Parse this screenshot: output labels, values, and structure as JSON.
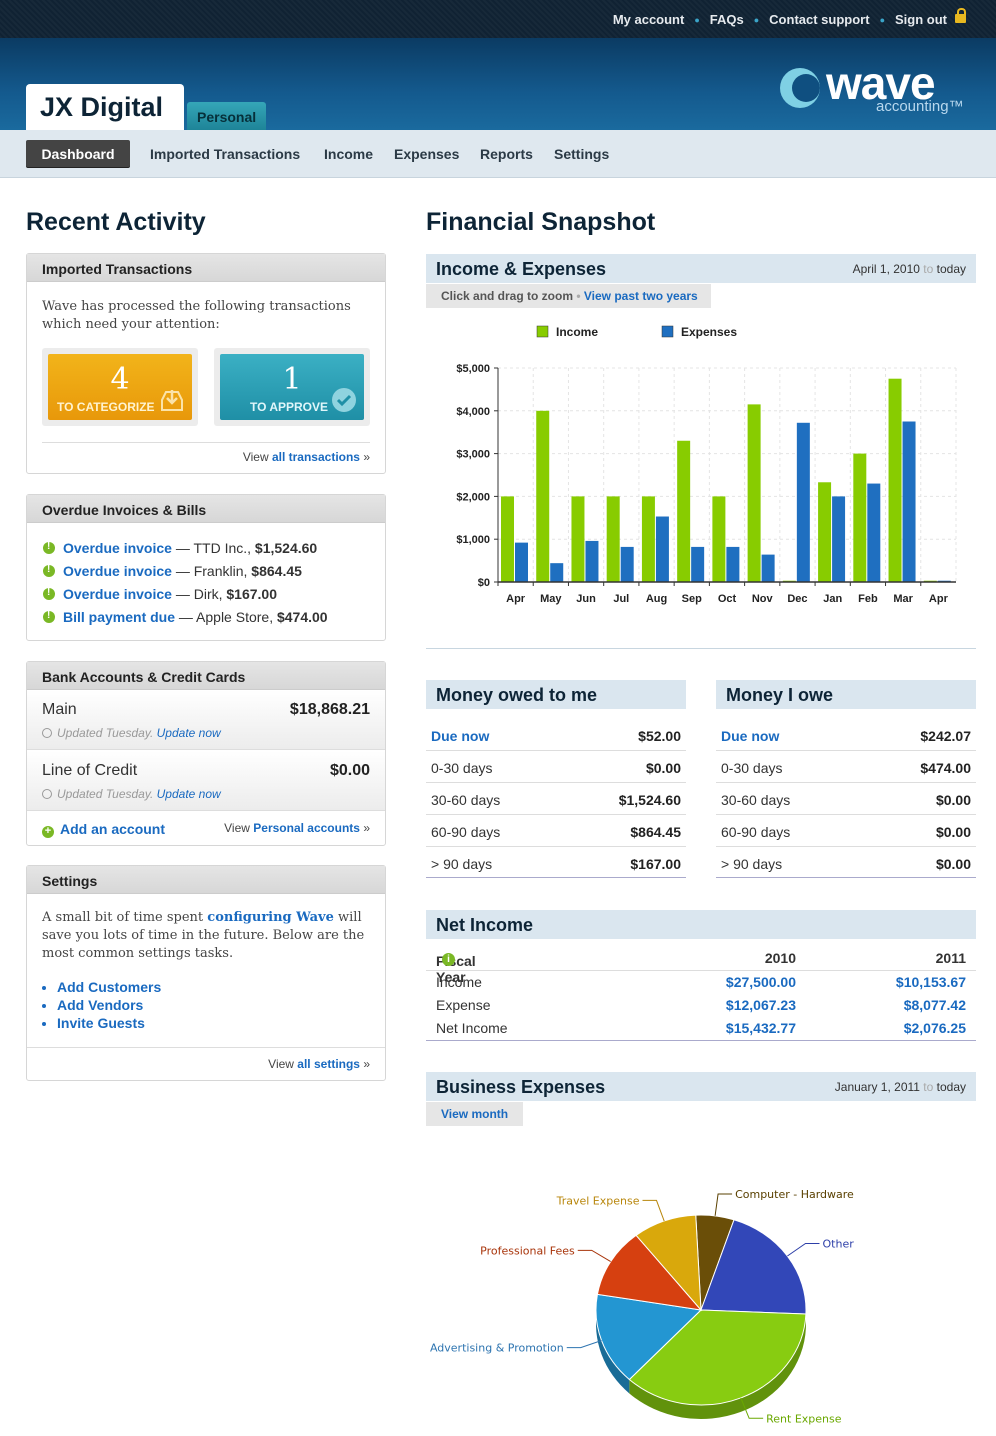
{
  "topnav": {
    "links": [
      "My account",
      "FAQs",
      "Contact support",
      "Sign out"
    ]
  },
  "header": {
    "company": "JX Digital",
    "tab_personal": "Personal",
    "logo_main": "wave",
    "logo_sub": "accounting™"
  },
  "nav": {
    "items": [
      "Dashboard",
      "Imported Transactions",
      "Income",
      "Expenses",
      "Reports",
      "Settings"
    ]
  },
  "left_title": "Recent Activity",
  "right_title": "Financial Snapshot",
  "imported": {
    "header": "Imported Transactions",
    "desc": "Wave has processed the following transactions which need your attention:",
    "categorize_count": "4",
    "categorize_label": "TO CATEGORIZE",
    "approve_count": "1",
    "approve_label": "TO APPROVE",
    "view_prefix": "View ",
    "view_link": "all transactions",
    "view_suffix": " »"
  },
  "overdue": {
    "header": "Overdue Invoices & Bills",
    "rows": [
      {
        "label": "Overdue invoice",
        "party": " — TTD Inc., ",
        "amount": "$1,524.60"
      },
      {
        "label": "Overdue invoice",
        "party": " — Franklin, ",
        "amount": "$864.45"
      },
      {
        "label": "Overdue invoice",
        "party": " — Dirk, ",
        "amount": "$167.00"
      },
      {
        "label": "Bill payment due",
        "party": " — Apple Store, ",
        "amount": "$474.00"
      }
    ]
  },
  "bank": {
    "header": "Bank Accounts & Credit Cards",
    "accounts": [
      {
        "name": "Main",
        "amount": "$18,868.21",
        "updated": "Updated Tuesday. ",
        "update_link": "Update now"
      },
      {
        "name": "Line of Credit",
        "amount": "$0.00",
        "updated": "Updated Tuesday. ",
        "update_link": "Update now"
      }
    ],
    "add_label": "Add an account",
    "view_prefix": "View ",
    "view_link": "Personal accounts",
    "view_suffix": " »"
  },
  "settings": {
    "header": "Settings",
    "desc_a": "A small bit of time spent ",
    "desc_link": "configuring Wave",
    "desc_b": " will save you lots of time in the future. Below are the most common settings tasks.",
    "links": [
      "Add Customers",
      "Add Vendors",
      "Invite Guests"
    ],
    "view_prefix": "View ",
    "view_link": "all settings",
    "view_suffix": " »"
  },
  "income_expenses": {
    "title": "Income & Expenses",
    "range_from": "April 1, 2010",
    "range_to": " to ",
    "range_end": "today",
    "zoom_hint": "Click and drag to zoom",
    "zoom_sep": " • ",
    "zoom_link": "View past two years"
  },
  "colors": {
    "income": "#88cc00",
    "expenses": "#1f6fc0"
  },
  "chart_data": [
    {
      "type": "bar",
      "categories": [
        "Apr",
        "May",
        "Jun",
        "Jul",
        "Aug",
        "Sep",
        "Oct",
        "Nov",
        "Dec",
        "Jan",
        "Feb",
        "Mar",
        "Apr"
      ],
      "series": [
        {
          "name": "Income",
          "values": [
            2000,
            4000,
            2000,
            2000,
            2000,
            3300,
            2000,
            4150,
            30,
            2330,
            3000,
            4750,
            30
          ]
        },
        {
          "name": "Expenses",
          "values": [
            920,
            440,
            960,
            820,
            1530,
            820,
            820,
            640,
            3720,
            2000,
            2300,
            3750,
            30
          ]
        }
      ],
      "yticks": [
        "$5,000",
        "$4,000",
        "$3,000",
        "$2,000",
        "$1,000",
        "$0"
      ],
      "ylim": [
        0,
        5000
      ],
      "legend": "top",
      "grid": true
    },
    {
      "type": "pie",
      "labels": [
        "Computer - Hardware",
        "Other",
        "Rent Expense",
        "Advertising & Promotion",
        "Professional Fees",
        "Travel Expense"
      ],
      "values": [
        6,
        21,
        37,
        16,
        12,
        10
      ],
      "colors": [
        "#6a4e08",
        "#3247b8",
        "#88cc11",
        "#2396d2",
        "#d64010",
        "#d9a80c"
      ],
      "label_colors": [
        "#5a4000",
        "#2d3fa8",
        "#6aa800",
        "#2d74b0",
        "#a8340a",
        "#b8860b"
      ]
    }
  ],
  "money_owed": {
    "title": "Money owed to me",
    "rows": [
      {
        "label": "Due now",
        "value": "$52.00"
      },
      {
        "label": "0-30 days",
        "value": "$0.00"
      },
      {
        "label": "30-60 days",
        "value": "$1,524.60"
      },
      {
        "label": "60-90 days",
        "value": "$864.45"
      },
      {
        "label": "> 90 days",
        "value": "$167.00"
      }
    ]
  },
  "money_owe": {
    "title": "Money I owe",
    "rows": [
      {
        "label": "Due now",
        "value": "$242.07"
      },
      {
        "label": "0-30 days",
        "value": "$474.00"
      },
      {
        "label": "30-60 days",
        "value": "$0.00"
      },
      {
        "label": "60-90 days",
        "value": "$0.00"
      },
      {
        "label": "> 90 days",
        "value": "$0.00"
      }
    ]
  },
  "net_income": {
    "title": "Net Income",
    "header": [
      "Fiscal Year",
      "2010",
      "2011"
    ],
    "rows": [
      {
        "label": "Income",
        "y2010": "$27,500.00",
        "y2011": "$10,153.67"
      },
      {
        "label": "Expense",
        "y2010": "$12,067.23",
        "y2011": "$8,077.42"
      },
      {
        "label": "Net Income",
        "y2010": "$15,432.77",
        "y2011": "$2,076.25"
      }
    ]
  },
  "business_expenses": {
    "title": "Business Expenses",
    "range_from": "January 1, 2011",
    "range_to": " to ",
    "range_end": "today",
    "view_month": "View month"
  }
}
